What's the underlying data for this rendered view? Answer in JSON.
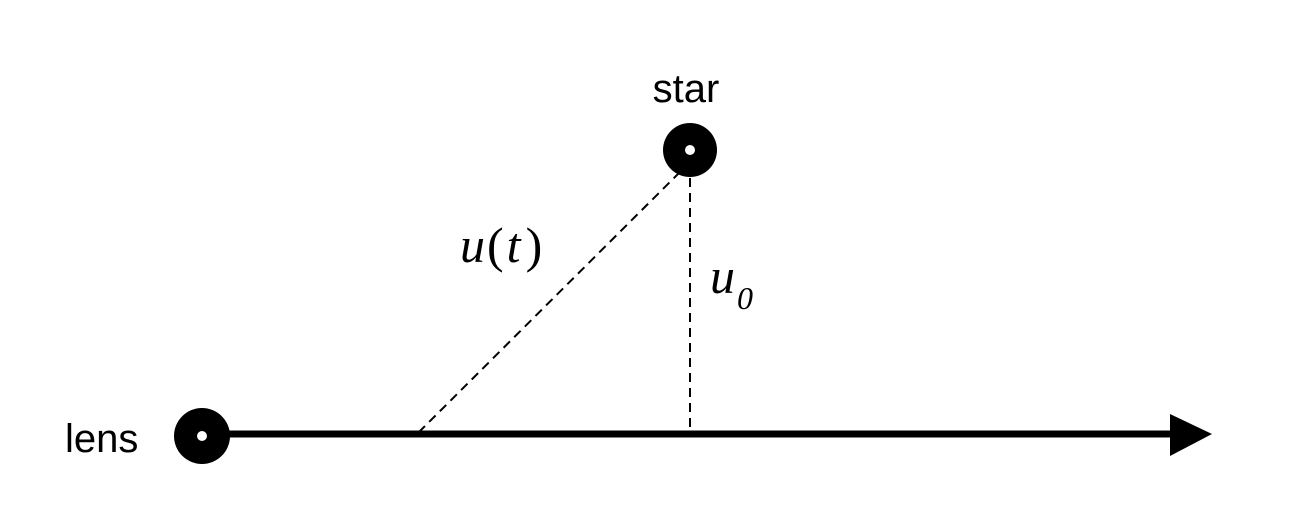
{
  "labels": {
    "star": "star",
    "lens": "lens",
    "ut_var": "u",
    "ut_paren_open": "(",
    "ut_arg": "t",
    "ut_paren_close": ")",
    "u0_var": "u",
    "u0_sub": "0"
  },
  "colors": {
    "ink": "#000000",
    "background": "#ffffff"
  }
}
